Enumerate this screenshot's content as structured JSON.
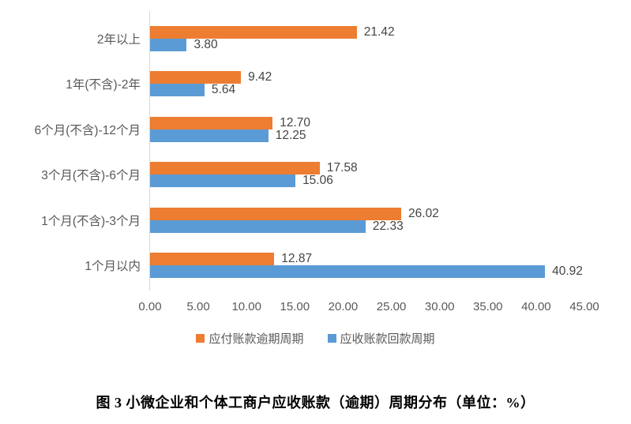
{
  "chart_data": {
    "type": "bar",
    "orientation": "horizontal",
    "categories": [
      "2年以上",
      "1年(不含)-2年",
      "6个月(不含)-12个月",
      "3个月(不含)-6个月",
      "1个月(不含)-3个月",
      "1个月以内"
    ],
    "series": [
      {
        "name": "应付账款逾期周期",
        "slug": "payable-overdue",
        "color": "#ED7D31",
        "values": [
          21.42,
          9.42,
          12.7,
          17.58,
          26.02,
          12.87
        ],
        "labels": [
          "21.42",
          "9.42",
          "12.70",
          "17.58",
          "26.02",
          "12.87"
        ]
      },
      {
        "name": "应收账款回款周期",
        "slug": "receivable-collection",
        "color": "#5B9BD5",
        "values": [
          3.8,
          5.64,
          12.25,
          15.06,
          22.33,
          40.92
        ],
        "labels": [
          "3.80",
          "5.64",
          "12.25",
          "15.06",
          "22.33",
          "40.92"
        ]
      }
    ],
    "xlim": [
      0,
      45
    ],
    "x_ticks": [
      "0.00",
      "5.00",
      "10.00",
      "15.00",
      "20.00",
      "25.00",
      "30.00",
      "35.00",
      "40.00",
      "45.00"
    ],
    "grid": false,
    "legend_position": "bottom",
    "axis_color": "#D9D9D9",
    "label_color": "#595959"
  },
  "caption": "图 3 小微企业和个体工商户应收账款（逾期）周期分布（单位：%）"
}
